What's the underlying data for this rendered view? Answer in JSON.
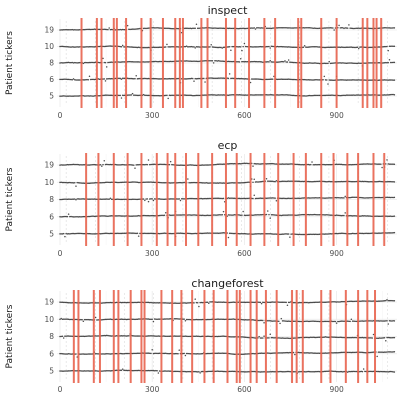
{
  "chart_data": [
    {
      "type": "scatter",
      "title": "inspect",
      "ylabel": "Patient tickers",
      "xlabel": "",
      "xlim": [
        0,
        1090
      ],
      "x_ticks": [
        0,
        300,
        600,
        900
      ],
      "y_ticks": [
        "19",
        "10",
        "8",
        "6",
        "5"
      ],
      "grid": true,
      "changepoints": [
        70,
        120,
        135,
        175,
        185,
        215,
        265,
        295,
        335,
        375,
        390,
        400,
        460,
        480,
        540,
        570,
        615,
        665,
        700,
        775,
        785,
        850,
        900,
        985,
        1000,
        1020,
        1030,
        1045
      ],
      "changepoint_color": "#E8634E",
      "point_color": "#2b2b2b"
    },
    {
      "type": "scatter",
      "title": "ecp",
      "ylabel": "Patient tickers",
      "xlabel": "",
      "xlim": [
        0,
        1090
      ],
      "x_ticks": [
        0,
        300,
        600,
        900
      ],
      "y_ticks": [
        "19",
        "10",
        "8",
        "6",
        "5"
      ],
      "grid": true,
      "changepoints": [
        85,
        125,
        175,
        220,
        265,
        315,
        350,
        375,
        410,
        450,
        495,
        540,
        575,
        620,
        665,
        710,
        760,
        800,
        850,
        890,
        935,
        970,
        1020,
        1055
      ],
      "changepoint_color": "#E8634E",
      "point_color": "#2b2b2b"
    },
    {
      "type": "scatter",
      "title": "changeforest",
      "ylabel": "Patient tickers",
      "xlabel": "",
      "xlim": [
        0,
        1090
      ],
      "x_ticks": [
        0,
        300,
        600,
        900
      ],
      "y_ticks": [
        "19",
        "10",
        "8",
        "6",
        "5"
      ],
      "grid": true,
      "changepoints": [
        45,
        60,
        110,
        130,
        175,
        190,
        230,
        265,
        275,
        330,
        365,
        395,
        430,
        470,
        500,
        545,
        575,
        585,
        620,
        640,
        670,
        705,
        755,
        770,
        790,
        850,
        880,
        930,
        970,
        1000,
        1025
      ],
      "changepoint_color": "#E8634E",
      "point_color": "#2b2b2b"
    }
  ]
}
